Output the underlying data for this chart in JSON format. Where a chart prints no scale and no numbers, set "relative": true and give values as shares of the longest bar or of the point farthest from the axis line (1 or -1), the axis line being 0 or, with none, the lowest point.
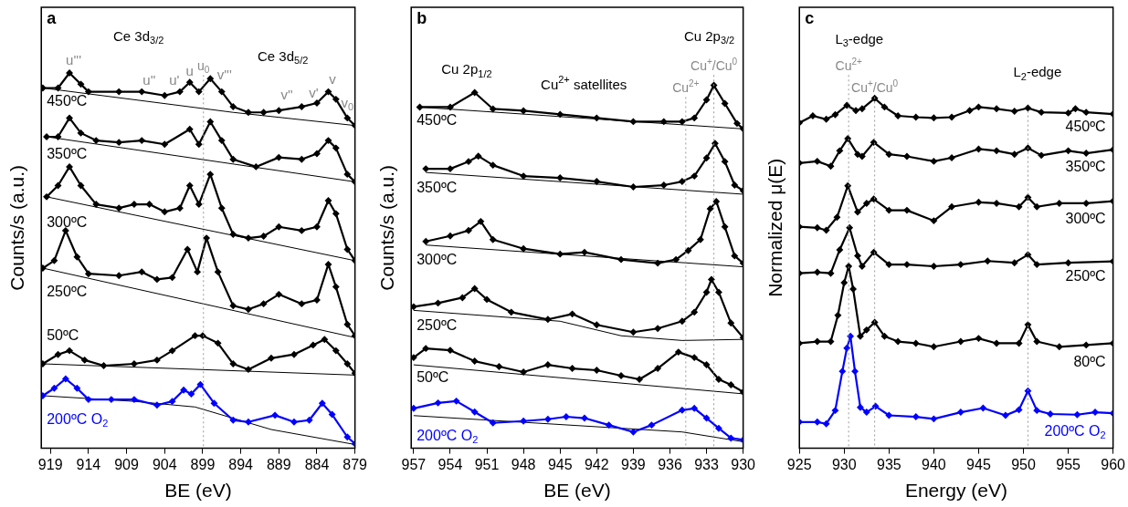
{
  "chart_data": [
    {
      "type": "line",
      "title": "a",
      "xlabel": "BE (eV)",
      "ylabel": "Counts/s (a.u.)",
      "relative": true,
      "marker": "diamond",
      "grid": false,
      "legend": false,
      "xlim": [
        920.2,
        879
      ],
      "xticks": [
        919,
        914,
        909,
        904,
        899,
        894,
        889,
        884,
        879
      ],
      "annotations": [
        "Ce 3d$_{3/2}$",
        "Ce 3d$_{5/2}$",
        "u'''",
        "u''",
        "u'",
        "u",
        "v'''",
        "v''",
        "v'",
        "v",
        "v$_{0}$"
      ],
      "ref_lines": [
        {
          "axis": "x",
          "value": 898.9,
          "label": "u$_{0}$",
          "line_style": "dotted"
        }
      ],
      "series": [
        {
          "name": "450ºC",
          "color": "#000000",
          "x": [
            920,
            918,
            916.5,
            915,
            914,
            910,
            907,
            904,
            902,
            900.7,
            899.5,
            898,
            896.5,
            895,
            893,
            891,
            889,
            886,
            884,
            882.5,
            881.5,
            880,
            879
          ],
          "values": [
            0.96,
            0.96,
            1.0,
            0.97,
            0.95,
            0.95,
            0.95,
            0.94,
            0.95,
            0.975,
            0.95,
            0.985,
            0.95,
            0.91,
            0.895,
            0.895,
            0.9,
            0.91,
            0.92,
            0.95,
            0.93,
            0.88,
            0.86
          ]
        },
        {
          "type": "line",
          "marker": "none",
          "color": "#000000",
          "x": [
            920,
            895,
            879
          ],
          "values": [
            0.96,
            0.895,
            0.86
          ]
        },
        {
          "name": "350ºC",
          "color": "#000000",
          "x": [
            919.5,
            918,
            916.5,
            915,
            913,
            910,
            907,
            904,
            900.7,
            899.5,
            898,
            896.5,
            895,
            892,
            889,
            886,
            884,
            882.5,
            881.5,
            880,
            879
          ],
          "values": [
            0.83,
            0.83,
            0.88,
            0.84,
            0.82,
            0.815,
            0.82,
            0.81,
            0.85,
            0.81,
            0.87,
            0.82,
            0.77,
            0.75,
            0.775,
            0.77,
            0.785,
            0.82,
            0.8,
            0.73,
            0.71
          ]
        },
        {
          "type": "line",
          "marker": "none",
          "color": "#000000",
          "x": [
            919.5,
            879
          ],
          "values": [
            0.83,
            0.71
          ]
        },
        {
          "name": "300ºC",
          "color": "#000000",
          "x": [
            919.5,
            918,
            916.5,
            915,
            913,
            910,
            908,
            906,
            904,
            902,
            900.7,
            899.5,
            898,
            896.5,
            895,
            893,
            891,
            889,
            886,
            884,
            882.5,
            881.5,
            880,
            879
          ],
          "values": [
            0.67,
            0.7,
            0.75,
            0.7,
            0.65,
            0.64,
            0.65,
            0.65,
            0.63,
            0.64,
            0.7,
            0.65,
            0.73,
            0.64,
            0.57,
            0.56,
            0.565,
            0.59,
            0.58,
            0.59,
            0.66,
            0.625,
            0.53,
            0.5
          ]
        },
        {
          "type": "line",
          "marker": "none",
          "color": "#000000",
          "x": [
            919.5,
            879
          ],
          "values": [
            0.67,
            0.5
          ]
        },
        {
          "name": "250ºC",
          "color": "#000000",
          "x": [
            920,
            918.5,
            917,
            915.5,
            914,
            910,
            907,
            905,
            903,
            901,
            899.7,
            898.5,
            897,
            895,
            893,
            891,
            889,
            886,
            884,
            882.5,
            881.5,
            880,
            879
          ],
          "values": [
            0.48,
            0.5,
            0.58,
            0.51,
            0.465,
            0.46,
            0.47,
            0.45,
            0.455,
            0.53,
            0.47,
            0.56,
            0.47,
            0.38,
            0.37,
            0.385,
            0.41,
            0.385,
            0.395,
            0.49,
            0.43,
            0.33,
            0.3
          ]
        },
        {
          "type": "line",
          "marker": "none",
          "color": "#000000",
          "x": [
            920,
            879
          ],
          "values": [
            0.48,
            0.295
          ]
        },
        {
          "name": "50ºC",
          "color": "#000000",
          "x": [
            920,
            918,
            916.5,
            914.5,
            912,
            908,
            905,
            903,
            900,
            899,
            897,
            895,
            893,
            890,
            887,
            884.5,
            883,
            881.5,
            880,
            879
          ],
          "values": [
            0.225,
            0.25,
            0.26,
            0.235,
            0.22,
            0.225,
            0.235,
            0.26,
            0.3,
            0.3,
            0.28,
            0.225,
            0.21,
            0.24,
            0.25,
            0.275,
            0.29,
            0.26,
            0.225,
            0.2
          ]
        },
        {
          "type": "line",
          "marker": "none",
          "color": "#000000",
          "x": [
            920,
            879
          ],
          "values": [
            0.225,
            0.195
          ]
        },
        {
          "name": "200ºC O$_{2}$",
          "color": "#0000ff",
          "x": [
            920,
            918.5,
            917,
            915.5,
            914,
            911,
            908,
            905,
            903,
            901.5,
            900.5,
            899.3,
            897.5,
            895,
            893,
            889.5,
            887,
            885,
            883.3,
            882,
            880,
            879
          ],
          "values": [
            0.14,
            0.16,
            0.185,
            0.16,
            0.13,
            0.13,
            0.13,
            0.115,
            0.125,
            0.155,
            0.145,
            0.17,
            0.12,
            0.075,
            0.07,
            0.088,
            0.07,
            0.075,
            0.12,
            0.09,
            0.03,
            0.012
          ]
        },
        {
          "type": "line",
          "marker": "none",
          "color": "#000000",
          "x": [
            920,
            908,
            900,
            890,
            879
          ],
          "values": [
            0.14,
            0.125,
            0.11,
            0.05,
            0.01
          ]
        }
      ]
    },
    {
      "type": "line",
      "title": "b",
      "xlabel": "BE (eV)",
      "ylabel": "Counts/s (a.u.)",
      "relative": true,
      "marker": "diamond",
      "grid": false,
      "legend": false,
      "xlim": [
        957.2,
        930
      ],
      "xticks": [
        957,
        954,
        951,
        948,
        945,
        942,
        939,
        936,
        933,
        930
      ],
      "annotations": [
        "Cu 2p$_{1/2}$",
        "Cu$^{2+}$ satellites",
        "Cu 2p$_{3/2}$"
      ],
      "ref_lines": [
        {
          "axis": "x",
          "value": 932.4,
          "label": "Cu$^{+}$/Cu$^{0}$",
          "line_style": "dotted"
        },
        {
          "axis": "x",
          "value": 934.7,
          "label": "Cu$^{2+}$",
          "line_style": "dotted"
        }
      ],
      "series": [
        {
          "name": "450ºC",
          "color": "#000000",
          "x": [
            956.5,
            954,
            952,
            950.5,
            948,
            945,
            942,
            939,
            936.5,
            935,
            934,
            933,
            932.4,
            931.5,
            930.5,
            930
          ],
          "values": [
            0.94,
            0.94,
            0.98,
            0.935,
            0.93,
            0.92,
            0.91,
            0.9,
            0.9,
            0.9,
            0.91,
            0.96,
            1.0,
            0.95,
            0.895,
            0.88
          ]
        },
        {
          "type": "line",
          "marker": "none",
          "color": "#000000",
          "x": [
            956.5,
            930
          ],
          "values": [
            0.94,
            0.88
          ]
        },
        {
          "name": "350ºC",
          "color": "#000000",
          "x": [
            956,
            954,
            952.5,
            951.7,
            950.5,
            948,
            945,
            942,
            939,
            936.5,
            935,
            934,
            933,
            932.3,
            931.5,
            930.7,
            930
          ],
          "values": [
            0.77,
            0.77,
            0.79,
            0.805,
            0.78,
            0.75,
            0.745,
            0.735,
            0.72,
            0.725,
            0.735,
            0.75,
            0.8,
            0.84,
            0.79,
            0.725,
            0.71
          ]
        },
        {
          "type": "line",
          "marker": "none",
          "color": "#000000",
          "x": [
            956,
            930
          ],
          "values": [
            0.76,
            0.7
          ]
        },
        {
          "name": "300ºC",
          "color": "#000000",
          "x": [
            956,
            954,
            952.5,
            951.5,
            950.5,
            948,
            945,
            943,
            940,
            937,
            935.5,
            934.5,
            933.5,
            932.7,
            932.2,
            931.5,
            930.7,
            930
          ],
          "values": [
            0.57,
            0.585,
            0.6,
            0.625,
            0.575,
            0.55,
            0.535,
            0.54,
            0.52,
            0.51,
            0.52,
            0.545,
            0.575,
            0.66,
            0.68,
            0.61,
            0.53,
            0.51
          ]
        },
        {
          "type": "line",
          "marker": "none",
          "color": "#000000",
          "x": [
            956,
            930
          ],
          "values": [
            0.56,
            0.5
          ]
        },
        {
          "name": "250ºC",
          "color": "#000000",
          "x": [
            957,
            955,
            953,
            952,
            951,
            949,
            946,
            944,
            942,
            939,
            937,
            935,
            934,
            933,
            932.6,
            932,
            931,
            930
          ],
          "values": [
            0.39,
            0.4,
            0.415,
            0.44,
            0.41,
            0.375,
            0.355,
            0.37,
            0.34,
            0.32,
            0.33,
            0.35,
            0.375,
            0.43,
            0.465,
            0.43,
            0.345,
            0.305
          ]
        },
        {
          "type": "line",
          "marker": "none",
          "color": "#000000",
          "x": [
            957,
            945,
            940,
            935,
            930
          ],
          "values": [
            0.38,
            0.35,
            0.31,
            0.297,
            0.3
          ]
        },
        {
          "name": "50ºC",
          "color": "#000000",
          "x": [
            957,
            956,
            954,
            952,
            950,
            948,
            946,
            944,
            942,
            940,
            938.5,
            937,
            935.3,
            934,
            933,
            932,
            931,
            930
          ],
          "values": [
            0.25,
            0.275,
            0.27,
            0.24,
            0.225,
            0.21,
            0.23,
            0.22,
            0.215,
            0.2,
            0.19,
            0.22,
            0.265,
            0.25,
            0.23,
            0.19,
            0.175,
            0.155
          ]
        },
        {
          "type": "line",
          "marker": "none",
          "color": "#000000",
          "x": [
            957,
            930
          ],
          "values": [
            0.23,
            0.15
          ]
        },
        {
          "name": "200ºC O$_{2}$",
          "color": "#0000ff",
          "x": [
            957,
            955,
            953.5,
            952,
            950.5,
            948,
            946,
            944.5,
            943,
            941,
            939,
            937.5,
            935,
            934,
            933,
            932,
            931,
            930
          ],
          "values": [
            0.11,
            0.125,
            0.13,
            0.1,
            0.07,
            0.075,
            0.08,
            0.087,
            0.083,
            0.064,
            0.045,
            0.064,
            0.105,
            0.11,
            0.083,
            0.055,
            0.028,
            0.023
          ]
        },
        {
          "type": "line",
          "marker": "none",
          "color": "#000000",
          "x": [
            957,
            935,
            930
          ],
          "values": [
            0.09,
            0.045,
            0.018
          ]
        }
      ]
    },
    {
      "type": "line",
      "title": "c",
      "xlabel": "Energy (eV)",
      "ylabel": "Normalized μ(E)",
      "relative": true,
      "marker": "diamond",
      "grid": false,
      "legend": false,
      "xlim": [
        925,
        960
      ],
      "xticks": [
        925,
        930,
        935,
        940,
        945,
        950,
        955,
        960
      ],
      "annotations": [
        "L$_{3}$-edge",
        "L$_{2}$-edge"
      ],
      "ref_lines": [
        {
          "axis": "x",
          "value": 930.5,
          "label": "Cu$^{2+}$",
          "line_style": "dotted"
        },
        {
          "axis": "x",
          "value": 933.4,
          "label": "Cu$^{+}$/Cu$^{0}$",
          "line_style": "dotted"
        },
        {
          "axis": "x",
          "value": 950.5,
          "label": null,
          "line_style": "dotted"
        }
      ],
      "series": [
        {
          "name": "450ºC",
          "color": "#000000",
          "x": [
            925,
            926.5,
            928,
            929,
            930.3,
            931.3,
            932,
            933.4,
            934.5,
            936,
            938,
            940,
            942,
            944,
            945,
            947,
            949,
            950.5,
            952,
            955,
            955.8,
            957,
            960
          ],
          "values": [
            0.93,
            0.95,
            0.94,
            0.953,
            0.98,
            0.965,
            0.97,
            1.0,
            0.975,
            0.95,
            0.946,
            0.944,
            0.946,
            0.965,
            0.975,
            0.97,
            0.963,
            0.972,
            0.96,
            0.958,
            0.97,
            0.96,
            0.955
          ]
        },
        {
          "name": "350ºC",
          "color": "#000000",
          "x": [
            925,
            927,
            928.5,
            929.5,
            930.4,
            931.5,
            932,
            933.3,
            935,
            937,
            940,
            942,
            945,
            947,
            949,
            950.5,
            952,
            955,
            957,
            960
          ],
          "values": [
            0.815,
            0.82,
            0.806,
            0.85,
            0.885,
            0.84,
            0.834,
            0.874,
            0.84,
            0.834,
            0.82,
            0.83,
            0.855,
            0.85,
            0.84,
            0.858,
            0.837,
            0.85,
            0.843,
            0.853
          ]
        },
        {
          "name": "300ºC",
          "color": "#000000",
          "x": [
            925,
            927,
            928,
            929.2,
            930.4,
            931.5,
            932.5,
            933.3,
            935,
            937,
            940,
            942,
            945,
            947,
            949.5,
            950.5,
            951.5,
            954,
            957,
            960
          ],
          "values": [
            0.633,
            0.63,
            0.623,
            0.66,
            0.75,
            0.675,
            0.7,
            0.712,
            0.68,
            0.68,
            0.65,
            0.69,
            0.703,
            0.7,
            0.69,
            0.717,
            0.69,
            0.7,
            0.7,
            0.706
          ]
        },
        {
          "name": "250ºC",
          "color": "#000000",
          "x": [
            925,
            927,
            928.5,
            929.5,
            930.6,
            931.5,
            932,
            933.3,
            935,
            937,
            940,
            943,
            946,
            949,
            950.5,
            951.5,
            955,
            960
          ],
          "values": [
            0.5,
            0.503,
            0.5,
            0.567,
            0.63,
            0.55,
            0.52,
            0.56,
            0.525,
            0.525,
            0.52,
            0.525,
            0.535,
            0.53,
            0.553,
            0.525,
            0.53,
            0.534
          ]
        },
        {
          "name": "80ºC",
          "color": "#000000",
          "x": [
            925,
            927,
            928.5,
            929.3,
            930,
            930.5,
            931,
            931.8,
            932.5,
            933.4,
            934.5,
            936,
            938,
            940,
            943,
            945,
            947,
            949.5,
            950.5,
            951.5,
            954,
            957,
            960
          ],
          "values": [
            0.3,
            0.305,
            0.305,
            0.38,
            0.473,
            0.52,
            0.455,
            0.32,
            0.338,
            0.36,
            0.32,
            0.305,
            0.3,
            0.29,
            0.305,
            0.314,
            0.3,
            0.3,
            0.353,
            0.305,
            0.29,
            0.295,
            0.3
          ]
        },
        {
          "name": "200ºC O$_{2}$",
          "color": "#0000ff",
          "x": [
            925,
            927,
            928,
            929,
            929.8,
            930.3,
            930.7,
            931.2,
            931.8,
            932.5,
            933.5,
            935,
            938,
            940,
            943,
            945.5,
            948,
            949.5,
            950.5,
            951.5,
            953,
            956,
            958,
            960
          ],
          "values": [
            0.075,
            0.075,
            0.07,
            0.108,
            0.22,
            0.286,
            0.32,
            0.22,
            0.117,
            0.103,
            0.12,
            0.094,
            0.09,
            0.084,
            0.103,
            0.115,
            0.094,
            0.11,
            0.164,
            0.108,
            0.098,
            0.096,
            0.103,
            0.1
          ]
        }
      ]
    }
  ]
}
